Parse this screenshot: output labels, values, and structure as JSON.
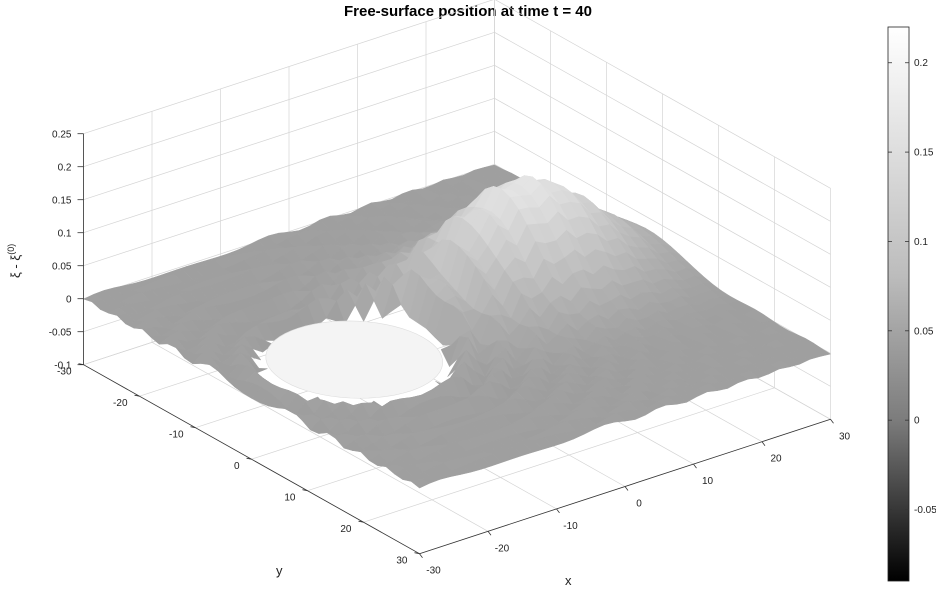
{
  "chart_data": {
    "type": "surface3d",
    "title": "Free-surface position at time t = 40",
    "xlabel": "x",
    "ylabel": "y",
    "zlabel": "ξ - ξ",
    "zlabel_superscript": "(0)",
    "x_ticks": [
      "-30",
      "-20",
      "-10",
      "0",
      "10",
      "20",
      "30"
    ],
    "y_ticks": [
      "-30",
      "-20",
      "-10",
      "0",
      "10",
      "20",
      "30"
    ],
    "z_ticks": [
      "-0.1",
      "-0.05",
      "0",
      "0.05",
      "0.1",
      "0.15",
      "0.2",
      "0.25"
    ],
    "xlim": [
      -30,
      30
    ],
    "ylim": [
      -30,
      30
    ],
    "zlim": [
      -0.1,
      0.25
    ],
    "obstacle_circle": {
      "center": [
        -15,
        0
      ],
      "radius": 10
    },
    "colormap": "gray",
    "colorbar": {
      "ticks": [
        "0.2",
        "0.15",
        "0.1",
        "0.05",
        "0",
        "-0.05"
      ],
      "range": [
        -0.09,
        0.22
      ],
      "orientation": "vertical",
      "placement": "right"
    },
    "grid": true
  }
}
